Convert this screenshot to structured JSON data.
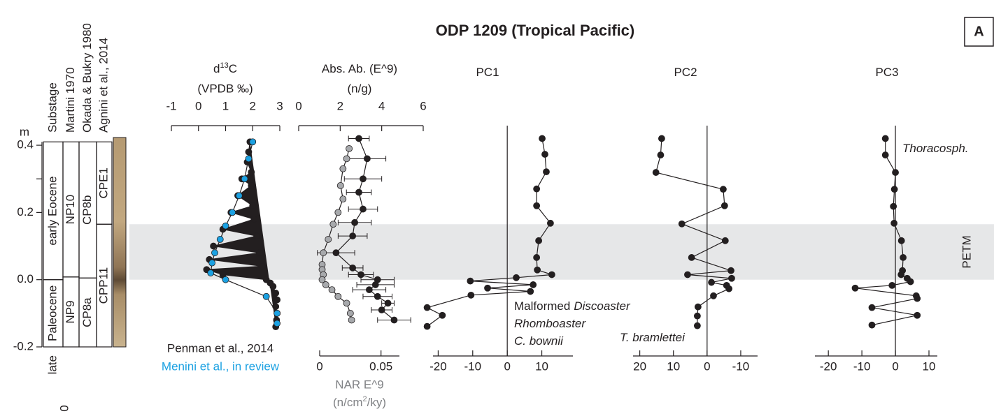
{
  "title": "ODP 1209 (Tropical Pacific)",
  "panel_label": "A",
  "stray_label": "0",
  "band": {
    "label": "PETM",
    "range": [
      0,
      0.165
    ],
    "color": "#e6e7e8"
  },
  "depth_axis": {
    "label": "m",
    "lim": [
      -0.2,
      0.45
    ],
    "ticks": [
      -0.2,
      {
        "value": 0,
        "label": "0.0"
      },
      0.2,
      0.4
    ],
    "minor_ticks": [
      0.3
    ]
  },
  "stratigraphy": {
    "columns": [
      {
        "header": "Substage",
        "units": [
          {
            "label": "early Eocene",
            "range": [
              0,
              0.41
            ]
          },
          {
            "label": "Paleocene",
            "range": [
              -0.2,
              0
            ]
          }
        ],
        "below_label": "late"
      },
      {
        "header": "Martini 1970",
        "units": [
          {
            "label": "NP10",
            "range": [
              0.008,
              0.41
            ]
          },
          {
            "label": "NP9",
            "range": [
              -0.2,
              0.008
            ]
          }
        ]
      },
      {
        "header": "Okada & Bukry 1980",
        "units": [
          {
            "label": "CP8b",
            "range": [
              0.005,
              0.41
            ]
          },
          {
            "label": "CP8a",
            "range": [
              -0.2,
              0.005
            ]
          }
        ]
      },
      {
        "header": "Agnini et al., 2014",
        "units": [
          {
            "label": "CPE1",
            "range": [
              0.165,
              0.41
            ]
          },
          {
            "label": "CPP11",
            "range": [
              -0.2,
              0.165
            ]
          }
        ]
      }
    ]
  },
  "chart_data": [
    {
      "type": "profile",
      "title": [
        "d",
        "13",
        "C"
      ],
      "subtitle": "(VPDB ‰)",
      "xaxis_position": "top",
      "xlim": [
        -1,
        3
      ],
      "xticks": [
        -1,
        0,
        1,
        2,
        3
      ],
      "legend": true,
      "series": [
        {
          "name": "Penman et al., 2014",
          "color": "#231f20",
          "fill": true,
          "depth": [
            0.41,
            0.38,
            0.35,
            0.32,
            0.3,
            0.28,
            0.25,
            0.22,
            0.2,
            0.18,
            0.15,
            0.13,
            0.1,
            0.08,
            0.06,
            0.04,
            0.03,
            0.015,
            0.0,
            -0.01,
            -0.02,
            -0.04,
            -0.06,
            -0.08,
            -0.1,
            -0.12,
            -0.14
          ],
          "values": [
            1.9,
            1.85,
            1.8,
            1.95,
            1.6,
            1.95,
            1.45,
            2.0,
            1.2,
            2.05,
            0.9,
            2.15,
            0.55,
            2.25,
            0.4,
            2.35,
            0.3,
            0.9,
            2.5,
            2.65,
            2.75,
            2.85,
            2.9,
            2.85,
            2.9,
            2.88,
            2.85
          ]
        },
        {
          "name": "Menini et al., in review",
          "color": "#1ba1e2",
          "fill": false,
          "depth": [
            0.41,
            0.36,
            0.3,
            0.25,
            0.2,
            0.16,
            0.12,
            0.08,
            0.05,
            0.02,
            0.0,
            -0.05,
            -0.1,
            -0.13
          ],
          "values": [
            2.0,
            1.85,
            1.7,
            1.5,
            1.25,
            1.0,
            0.8,
            0.6,
            0.5,
            0.45,
            1.0,
            2.5,
            2.9,
            2.9
          ]
        }
      ]
    },
    {
      "type": "profile",
      "title": [
        "Abs. Ab. (E^9)"
      ],
      "subtitle": "(n/g)",
      "xaxis_position": "top",
      "xlim": [
        0,
        6
      ],
      "xticks": [
        0,
        2,
        4,
        6
      ],
      "x2label": "NAR E^9",
      "x2unit": [
        "(n/cm",
        "2",
        "/ky)"
      ],
      "x2lim": [
        0,
        0.065
      ],
      "x2ticks": [
        0,
        0.05
      ],
      "x2color": "#808285",
      "series": [
        {
          "color": "#231f20",
          "depth": [
            0.42,
            0.36,
            0.3,
            0.26,
            0.21,
            0.17,
            0.13,
            0.08,
            0.035,
            0.015,
            0.0,
            -0.015,
            -0.03,
            -0.05,
            -0.07,
            -0.09,
            -0.12
          ],
          "values": [
            2.9,
            3.3,
            3.1,
            2.9,
            3.1,
            2.7,
            2.6,
            1.8,
            2.6,
            3.0,
            3.8,
            3.7,
            3.4,
            3.8,
            4.3,
            4.0,
            4.6
          ],
          "error": [
            0.5,
            0.9,
            0.9,
            0.6,
            0.7,
            0.8,
            0.7,
            0.9,
            0.5,
            0.6,
            0.8,
            0.9,
            0.8,
            0.7,
            0.3,
            0.5,
            0.8
          ]
        },
        {
          "color": "#a7a9ac",
          "axis": "x2",
          "depth": [
            0.39,
            0.36,
            0.33,
            0.28,
            0.24,
            0.2,
            0.165,
            0.12,
            0.08,
            0.045,
            0.03,
            0.015,
            0.0,
            -0.015,
            -0.03,
            -0.05,
            -0.07,
            -0.1,
            -0.12
          ],
          "values": [
            0.024,
            0.022,
            0.019,
            0.017,
            0.019,
            0.015,
            0.011,
            0.007,
            0.003,
            0.002,
            0.002,
            0.003,
            0.002,
            0.005,
            0.01,
            0.015,
            0.022,
            0.025,
            0.026
          ]
        }
      ]
    },
    {
      "type": "profile",
      "title": [
        "PC1"
      ],
      "xaxis_position": "bottom",
      "zero_line": true,
      "xlim": [
        -21.5,
        19
      ],
      "xticks": [
        -20,
        -10,
        0,
        10
      ],
      "annotation": [
        {
          "parts": [
            "Malformed",
            "Discoaster"
          ],
          "italic": [
            false,
            true
          ]
        },
        {
          "parts": [
            "Rhomboaster"
          ],
          "italic": [
            true
          ]
        },
        {
          "parts": [
            "C. bownii"
          ],
          "italic": [
            true
          ]
        }
      ],
      "series": [
        {
          "color": "#231f20",
          "depth": [
            0.42,
            0.373,
            0.321,
            0.27,
            0.22,
            0.168,
            0.116,
            0.066,
            0.029,
            0.015,
            0.006,
            -0.004,
            -0.015,
            -0.025,
            -0.035,
            -0.046,
            -0.083,
            -0.106,
            -0.139
          ],
          "values": [
            10.1,
            10.9,
            11.3,
            8.5,
            8.5,
            12.5,
            9.1,
            8.5,
            8.7,
            12.9,
            2.6,
            -10.7,
            7.5,
            -5.7,
            6.7,
            -10.5,
            -23.2,
            -18.8,
            -23.2
          ]
        }
      ]
    },
    {
      "type": "profile",
      "title": [
        "PC2"
      ],
      "xaxis_position": "bottom",
      "zero_line": true,
      "xlim": [
        22,
        -15
      ],
      "xticks": [
        20,
        10,
        0,
        -10
      ],
      "annotation": [
        {
          "parts": [
            "T. bramlettei"
          ],
          "italic": [
            true
          ]
        }
      ],
      "series": [
        {
          "color": "#231f20",
          "depth": [
            0.42,
            0.371,
            0.319,
            0.269,
            0.22,
            0.166,
            0.116,
            0.066,
            0.027,
            0.015,
            0.004,
            -0.008,
            -0.017,
            -0.027,
            -0.048,
            -0.081,
            -0.108,
            -0.137
          ],
          "values": [
            13.5,
            13.8,
            15.2,
            -4.8,
            -5.2,
            7.5,
            -5.4,
            4.6,
            -7.1,
            5.8,
            -7.3,
            -1.3,
            -5.8,
            -6.5,
            -1.9,
            2.7,
            2.9,
            2.9
          ]
        }
      ]
    },
    {
      "type": "profile",
      "title": [
        "PC3"
      ],
      "xaxis_position": "bottom",
      "zero_line": true,
      "xlim": [
        -24,
        12.5
      ],
      "xticks": [
        -20,
        -10,
        0,
        10
      ],
      "annotation": [
        {
          "parts": [
            "Thoracosph."
          ],
          "italic": [
            true
          ]
        }
      ],
      "series": [
        {
          "color": "#231f20",
          "depth": [
            0.42,
            0.371,
            0.319,
            0.269,
            0.218,
            0.168,
            0.116,
            0.066,
            0.027,
            0.015,
            0.004,
            -0.006,
            -0.017,
            -0.025,
            -0.048,
            -0.056,
            -0.083,
            -0.106,
            -0.135
          ],
          "values": [
            -3,
            -3,
            0,
            -0.3,
            -0.6,
            -0.4,
            1.8,
            2.3,
            2.1,
            1.7,
            3.5,
            4.5,
            -1,
            -12,
            6.2,
            6.5,
            -7,
            6.5,
            -7
          ]
        }
      ]
    }
  ]
}
